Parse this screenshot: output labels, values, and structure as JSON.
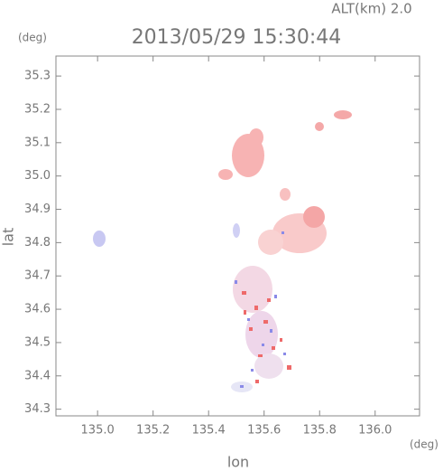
{
  "chart_data": {
    "type": "map",
    "title": "2013/05/29 15:30:44",
    "subtitle": "ALT(km) 2.0",
    "y_unit": "(deg)",
    "x_unit": "(deg)",
    "x_label": "lon",
    "y_label": "lat",
    "xlim": [
      134.85,
      136.16
    ],
    "ylim": [
      34.28,
      35.36
    ],
    "xticks": [
      {
        "value": 135.0,
        "label": "135.0"
      },
      135.2,
      135.4,
      135.6,
      135.8,
      {
        "value": 136.0,
        "label": "136.0"
      }
    ],
    "yticks": [
      34.3,
      34.4,
      34.5,
      34.6,
      34.7,
      34.8,
      34.9,
      {
        "value": 35.0,
        "label": "35.0"
      },
      35.1,
      35.2,
      35.3
    ]
  }
}
